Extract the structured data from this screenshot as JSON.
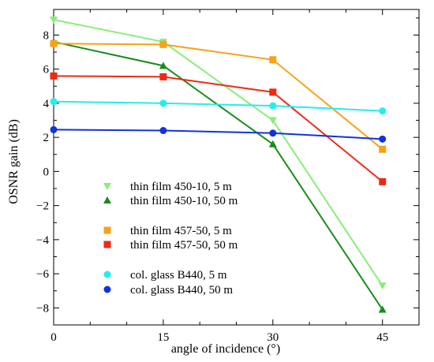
{
  "chart_data": {
    "type": "line",
    "xlabel": "angle of incidence  (°)",
    "ylabel": "OSNR gain  (dB)",
    "xlim": [
      0,
      50
    ],
    "ylim": [
      -9,
      9.5
    ],
    "x_ticks": [
      0,
      15,
      30,
      45
    ],
    "y_ticks": [
      -8,
      -6,
      -4,
      -2,
      0,
      2,
      4,
      6,
      8
    ],
    "x_tick_labels": [
      "0",
      "15",
      "30",
      "45"
    ],
    "y_tick_labels": [
      "−8",
      "−6",
      "−4",
      "−2",
      "0",
      "2",
      "4",
      "6",
      "8"
    ],
    "x": [
      0,
      15,
      30,
      45
    ],
    "grid": false,
    "legend_position": "bottom-left",
    "series": [
      {
        "name": "thin film 450-10, 5 m",
        "color": "#88ee77",
        "marker": "triangle-down",
        "values": [
          8.9,
          7.6,
          3.0,
          -6.7
        ]
      },
      {
        "name": "thin film 450-10, 50 m",
        "color": "#1a8c1a",
        "marker": "triangle-up",
        "values": [
          7.6,
          6.2,
          1.6,
          -8.1
        ]
      },
      {
        "name": "thin film 457-50, 5 m",
        "color": "#f7a21b",
        "marker": "square",
        "values": [
          7.5,
          7.45,
          6.55,
          1.3
        ]
      },
      {
        "name": "thin film 457-50, 50 m",
        "color": "#ee2a14",
        "marker": "square",
        "values": [
          5.6,
          5.55,
          4.65,
          -0.6
        ]
      },
      {
        "name": "col. glass B440, 5 m",
        "color": "#22eeee",
        "marker": "circle",
        "values": [
          4.1,
          4.0,
          3.85,
          3.55
        ]
      },
      {
        "name": "col. glass B440, 50 m",
        "color": "#1133dd",
        "marker": "circle",
        "values": [
          2.45,
          2.4,
          2.25,
          1.9
        ]
      }
    ]
  }
}
